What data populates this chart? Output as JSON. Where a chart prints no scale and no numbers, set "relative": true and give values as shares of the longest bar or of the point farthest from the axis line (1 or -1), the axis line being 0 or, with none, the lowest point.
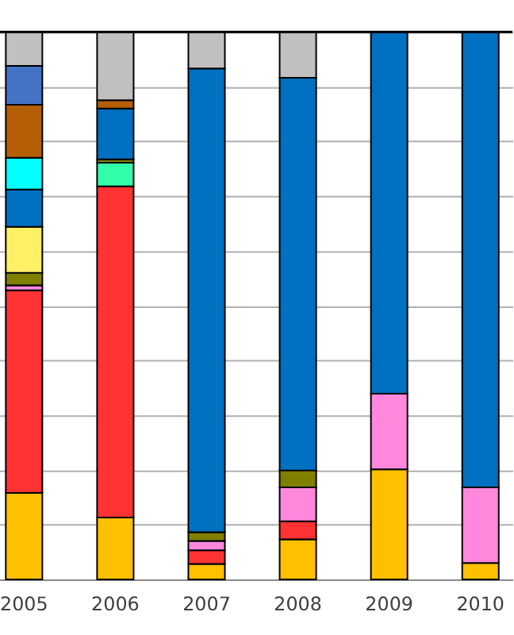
{
  "chart_data": {
    "type": "bar",
    "stacked": true,
    "relative": true,
    "grid": "y",
    "legend": false,
    "categories": [
      "2005",
      "2006",
      "2007",
      "2008",
      "2009",
      "2010"
    ],
    "series": [
      {
        "color": "#ffc000",
        "values": [
          0.158,
          0.113,
          0.028,
          0.073,
          0.201,
          0.03
        ]
      },
      {
        "color": "#ff3333",
        "values": [
          0.37,
          0.605,
          0.025,
          0.033,
          null,
          null
        ]
      },
      {
        "color": "#ff88dd",
        "values": [
          0.009,
          null,
          0.017,
          0.062,
          0.138,
          0.138
        ]
      },
      {
        "color": "#33ffaa",
        "values": [
          null,
          0.043,
          null,
          null,
          null,
          null
        ]
      },
      {
        "color": "#808000",
        "values": [
          0.023,
          0.006,
          0.016,
          0.031,
          null,
          null
        ]
      },
      {
        "color": "#fff066",
        "values": [
          0.084,
          null,
          null,
          null,
          null,
          null
        ]
      },
      {
        "color": "#0070c0",
        "values": [
          0.068,
          0.093,
          0.847,
          0.717,
          0.661,
          0.832
        ]
      },
      {
        "color": "#00ffff",
        "values": [
          0.058,
          null,
          null,
          null,
          null,
          null
        ]
      },
      {
        "color": "#b45f06",
        "values": [
          0.097,
          0.015,
          null,
          null,
          null,
          null
        ]
      },
      {
        "color": "#4472c4",
        "values": [
          0.071,
          null,
          null,
          null,
          null,
          null
        ]
      },
      {
        "color": "#c0c0c0",
        "values": [
          0.062,
          0.125,
          0.067,
          0.084,
          null,
          null
        ]
      }
    ]
  }
}
